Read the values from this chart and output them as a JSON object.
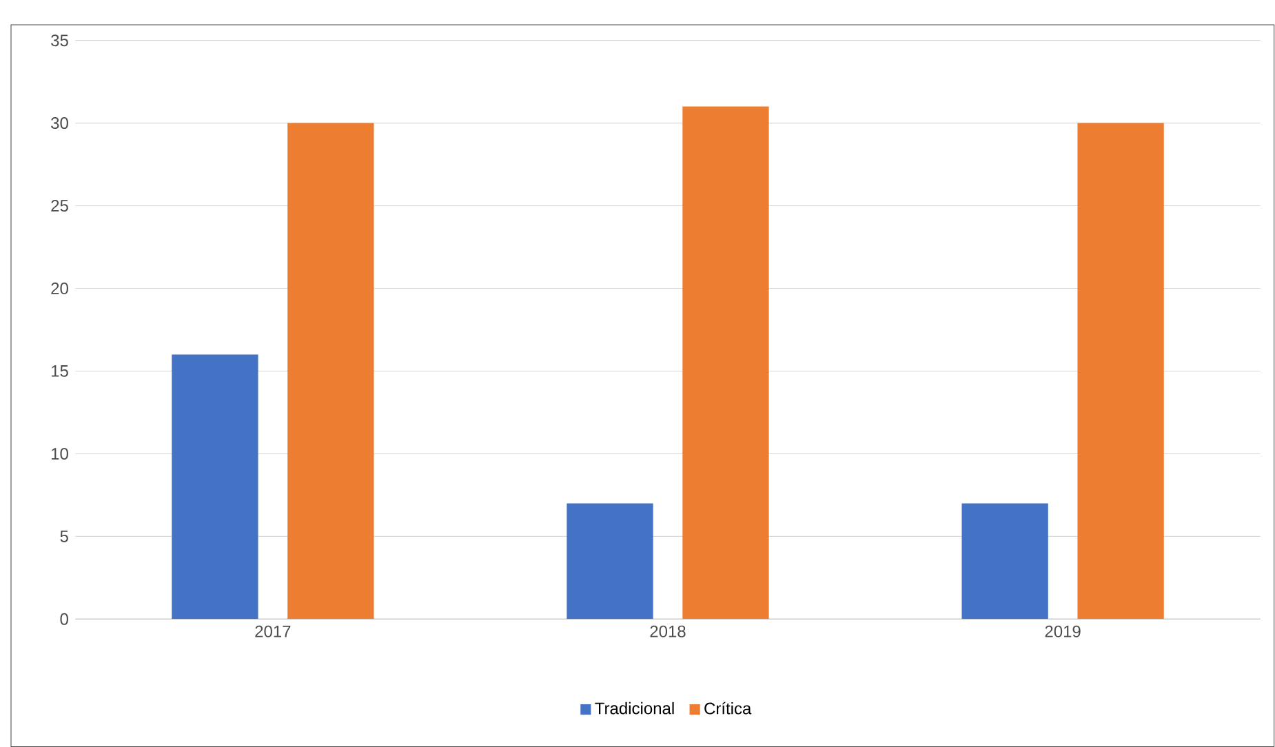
{
  "chart_data": {
    "type": "bar",
    "categories": [
      "2017",
      "2018",
      "2019"
    ],
    "series": [
      {
        "name": "Tradicional",
        "color": "#4472c4",
        "values": [
          16,
          7,
          7
        ]
      },
      {
        "name": "Crítica",
        "color": "#ed7d31",
        "values": [
          30,
          31,
          30
        ]
      }
    ],
    "ylim": [
      0,
      35
    ],
    "yticks": [
      0,
      5,
      10,
      15,
      20,
      25,
      30,
      35
    ],
    "grid": "y",
    "legend": "bottom"
  }
}
